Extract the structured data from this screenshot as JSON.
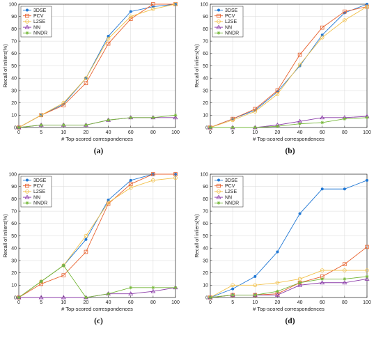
{
  "chart_data": [
    {
      "type": "line",
      "caption": "(a)",
      "xlabel": "# Top-scored correspondences",
      "ylabel": "Recall of inliers(%)",
      "x": [
        0,
        5,
        10,
        20,
        40,
        60,
        80,
        100
      ],
      "xticks": [
        "0",
        "5",
        "10",
        "20",
        "40",
        "60",
        "80",
        "100"
      ],
      "ylim": [
        0,
        100
      ],
      "yticks": [
        "0",
        "10",
        "20",
        "30",
        "40",
        "50",
        "60",
        "70",
        "80",
        "90",
        "100"
      ],
      "grid": true,
      "legend": "top-left",
      "series": [
        {
          "name": "3DSE",
          "color": "#1f77d4",
          "marker": "dot",
          "values": [
            0,
            10,
            19,
            40,
            74,
            94,
            98,
            100
          ]
        },
        {
          "name": "PCV",
          "color": "#e8602c",
          "marker": "square",
          "values": [
            0,
            10,
            18,
            36,
            68,
            88,
            100,
            100
          ]
        },
        {
          "name": "L2SE",
          "color": "#f2c14a",
          "marker": "circle",
          "values": [
            0,
            10,
            20,
            40,
            72,
            90,
            96,
            100
          ]
        },
        {
          "name": "NN",
          "color": "#8a3aa8",
          "marker": "triangle",
          "values": [
            0,
            2,
            2,
            2,
            6,
            8,
            8,
            8
          ]
        },
        {
          "name": "NNDR",
          "color": "#76b83a",
          "marker": "star",
          "values": [
            0,
            2,
            2,
            2,
            6,
            8,
            8,
            10
          ]
        }
      ]
    },
    {
      "type": "line",
      "caption": "(b)",
      "xlabel": "# Top-scored correspondences",
      "ylabel": "Recall of inliers(%)",
      "x": [
        0,
        5,
        10,
        20,
        40,
        60,
        80,
        100
      ],
      "xticks": [
        "0",
        "5",
        "10",
        "20",
        "40",
        "60",
        "80",
        "100"
      ],
      "ylim": [
        0,
        100
      ],
      "yticks": [
        "0",
        "10",
        "20",
        "30",
        "40",
        "50",
        "60",
        "70",
        "80",
        "90",
        "100"
      ],
      "grid": true,
      "legend": "top-left",
      "series": [
        {
          "name": "3DSE",
          "color": "#1f77d4",
          "marker": "dot",
          "values": [
            0,
            7,
            14,
            29,
            50,
            75,
            93,
            100
          ]
        },
        {
          "name": "PCV",
          "color": "#e8602c",
          "marker": "square",
          "values": [
            0,
            7,
            15,
            30,
            59,
            81,
            94,
            98
          ]
        },
        {
          "name": "L2SE",
          "color": "#f2c14a",
          "marker": "circle",
          "values": [
            0,
            6,
            13,
            27,
            51,
            73,
            87,
            98
          ]
        },
        {
          "name": "NN",
          "color": "#8a3aa8",
          "marker": "triangle",
          "values": [
            0,
            0,
            0,
            2,
            5,
            8,
            8,
            9
          ]
        },
        {
          "name": "NNDR",
          "color": "#76b83a",
          "marker": "star",
          "values": [
            0,
            0,
            0,
            1,
            3,
            4,
            7,
            8
          ]
        }
      ]
    },
    {
      "type": "line",
      "caption": "(c)",
      "xlabel": "# Top-scored correspondences",
      "ylabel": "Recall of inliers(%)",
      "x": [
        0,
        5,
        10,
        20,
        40,
        60,
        80,
        100
      ],
      "xticks": [
        "0",
        "5",
        "10",
        "20",
        "40",
        "60",
        "80",
        "100"
      ],
      "ylim": [
        0,
        100
      ],
      "yticks": [
        "0",
        "10",
        "20",
        "30",
        "40",
        "50",
        "60",
        "70",
        "80",
        "90",
        "100"
      ],
      "grid": true,
      "legend": "top-left",
      "series": [
        {
          "name": "3DSE",
          "color": "#1f77d4",
          "marker": "dot",
          "values": [
            0,
            13,
            26,
            47,
            79,
            95,
            100,
            100
          ]
        },
        {
          "name": "PCV",
          "color": "#e8602c",
          "marker": "square",
          "values": [
            0,
            11,
            18,
            37,
            76,
            92,
            100,
            100
          ]
        },
        {
          "name": "L2SE",
          "color": "#f2c14a",
          "marker": "circle",
          "values": [
            0,
            13,
            26,
            50,
            77,
            89,
            95,
            97
          ]
        },
        {
          "name": "NN",
          "color": "#8a3aa8",
          "marker": "triangle",
          "values": [
            0,
            0,
            0,
            0,
            3,
            3,
            5,
            8
          ]
        },
        {
          "name": "NNDR",
          "color": "#76b83a",
          "marker": "star",
          "values": [
            0,
            13,
            26,
            0,
            3,
            8,
            8,
            8
          ]
        }
      ]
    },
    {
      "type": "line",
      "caption": "(d)",
      "xlabel": "# Top-scored correspondences",
      "ylabel": "Recall of inliers(%)",
      "x": [
        0,
        5,
        10,
        20,
        40,
        60,
        80,
        100
      ],
      "xticks": [
        "0",
        "5",
        "10",
        "20",
        "40",
        "60",
        "80",
        "100"
      ],
      "ylim": [
        0,
        100
      ],
      "yticks": [
        "0",
        "10",
        "20",
        "30",
        "40",
        "50",
        "60",
        "70",
        "80",
        "90",
        "100"
      ],
      "grid": true,
      "legend": "top-left",
      "series": [
        {
          "name": "3DSE",
          "color": "#1f77d4",
          "marker": "dot",
          "values": [
            0,
            7,
            17,
            37,
            68,
            88,
            88,
            95
          ]
        },
        {
          "name": "PCV",
          "color": "#e8602c",
          "marker": "square",
          "values": [
            0,
            2,
            2,
            3,
            12,
            17,
            27,
            41
          ]
        },
        {
          "name": "L2SE",
          "color": "#f2c14a",
          "marker": "circle",
          "values": [
            0,
            10,
            10,
            12,
            15,
            22,
            22,
            22
          ]
        },
        {
          "name": "NN",
          "color": "#8a3aa8",
          "marker": "triangle",
          "values": [
            0,
            2,
            2,
            2,
            10,
            12,
            12,
            15
          ]
        },
        {
          "name": "NNDR",
          "color": "#76b83a",
          "marker": "star",
          "values": [
            0,
            2,
            2,
            5,
            12,
            15,
            15,
            17
          ]
        }
      ]
    }
  ]
}
